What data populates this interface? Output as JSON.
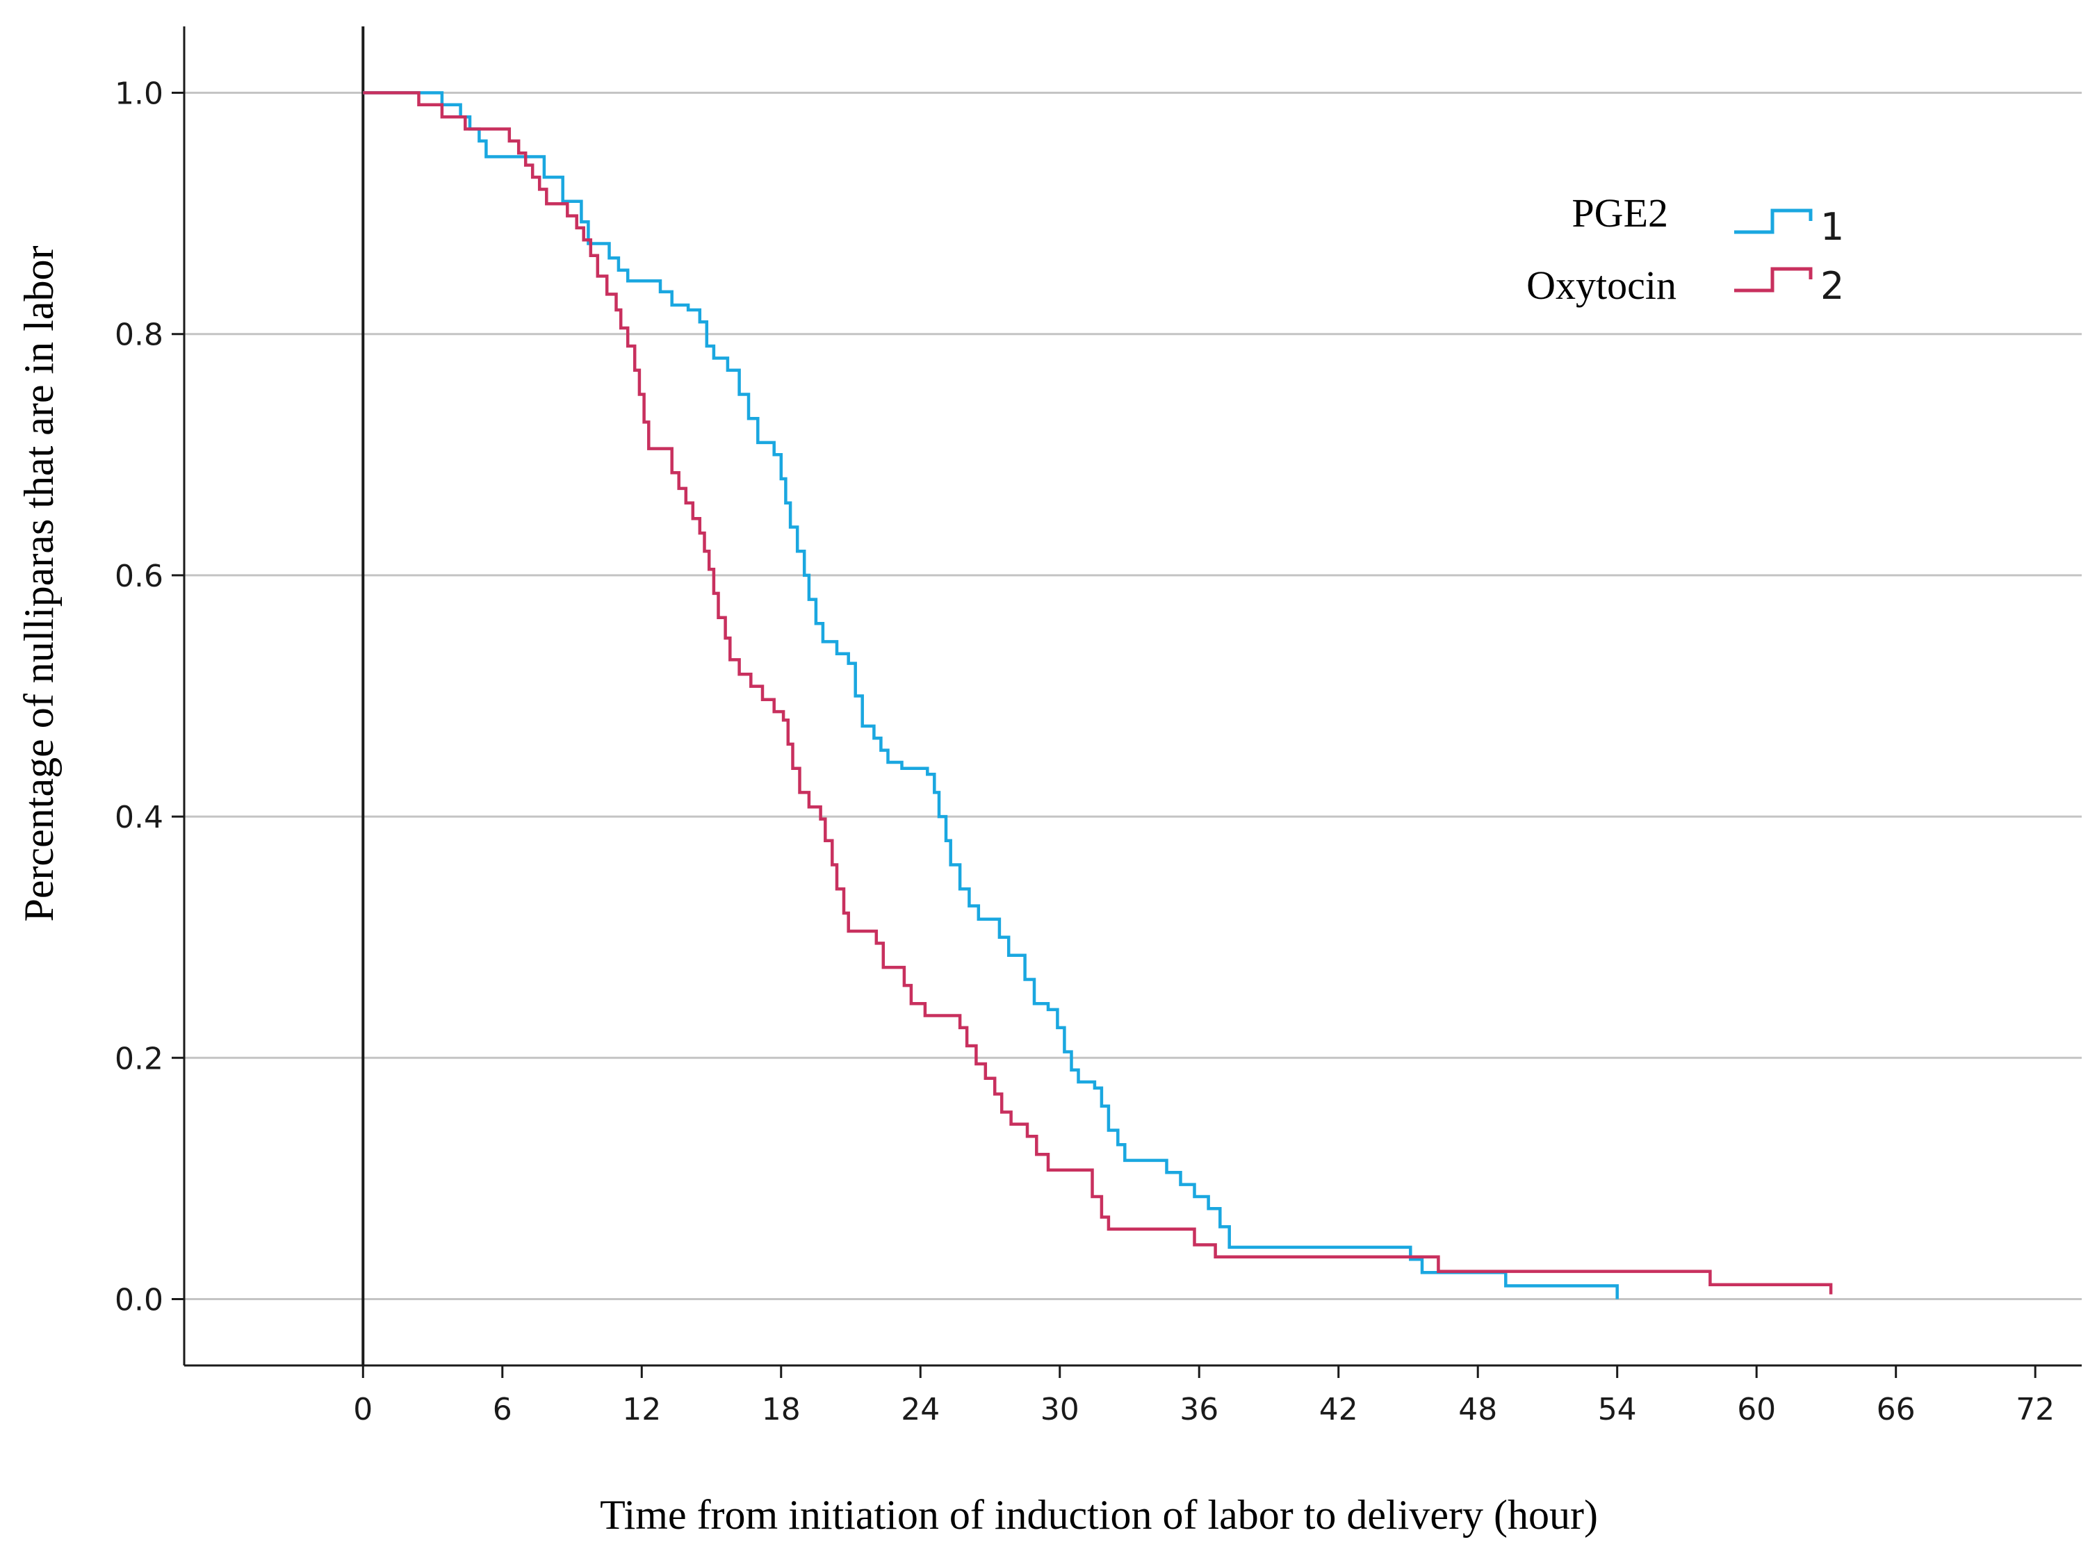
{
  "chart_data": {
    "type": "line",
    "step": true,
    "title": "",
    "xlabel": "Time from initiation of induction of labor to delivery (hour)",
    "ylabel": "Percentage of nulliparas that are in labor",
    "xlim": [
      -7.7,
      74
    ],
    "ylim": [
      -0.055,
      1.055
    ],
    "xticks": [
      0,
      6,
      12,
      18,
      24,
      30,
      36,
      42,
      48,
      54,
      60,
      66,
      72
    ],
    "xtick_labels": [
      "0",
      "6",
      "12",
      "18",
      "24",
      "30",
      "36",
      "42",
      "48",
      "54",
      "60",
      "66",
      "72"
    ],
    "yticks": [
      0.0,
      0.2,
      0.4,
      0.6,
      0.8,
      1.0
    ],
    "ytick_labels": [
      "0.0",
      "0.2",
      "0.4",
      "0.6",
      "0.8",
      "1.0"
    ],
    "grid": "horizontal",
    "reference_line_x": 0,
    "legend_position": "top-right",
    "colors": {
      "series1": "#1aa7e0",
      "series2": "#c8305e",
      "grid": "#c4c4c4",
      "axis": "#1a1a1a"
    },
    "series": [
      {
        "name": "PGE2",
        "code": "1",
        "color": "#1aa7e0",
        "points": [
          [
            0,
            1.0
          ],
          [
            2.3,
            1.0
          ],
          [
            3.4,
            0.99
          ],
          [
            4.2,
            0.98
          ],
          [
            4.6,
            0.97
          ],
          [
            5.0,
            0.96
          ],
          [
            5.3,
            0.947
          ],
          [
            6.6,
            0.947
          ],
          [
            7.8,
            0.93
          ],
          [
            8.6,
            0.91
          ],
          [
            9.4,
            0.893
          ],
          [
            9.7,
            0.875
          ],
          [
            10.6,
            0.863
          ],
          [
            11.0,
            0.853
          ],
          [
            11.4,
            0.844
          ],
          [
            12.8,
            0.835
          ],
          [
            13.3,
            0.824
          ],
          [
            14.0,
            0.82
          ],
          [
            14.5,
            0.81
          ],
          [
            14.8,
            0.79
          ],
          [
            15.1,
            0.78
          ],
          [
            15.7,
            0.77
          ],
          [
            16.2,
            0.75
          ],
          [
            16.6,
            0.73
          ],
          [
            17.0,
            0.71
          ],
          [
            17.7,
            0.7
          ],
          [
            18.0,
            0.68
          ],
          [
            18.2,
            0.66
          ],
          [
            18.4,
            0.64
          ],
          [
            18.7,
            0.62
          ],
          [
            19.0,
            0.6
          ],
          [
            19.2,
            0.58
          ],
          [
            19.5,
            0.56
          ],
          [
            19.8,
            0.545
          ],
          [
            20.4,
            0.535
          ],
          [
            20.9,
            0.527
          ],
          [
            21.2,
            0.5
          ],
          [
            21.5,
            0.475
          ],
          [
            22.0,
            0.465
          ],
          [
            22.3,
            0.455
          ],
          [
            22.6,
            0.445
          ],
          [
            23.2,
            0.44
          ],
          [
            24.3,
            0.435
          ],
          [
            24.6,
            0.42
          ],
          [
            24.8,
            0.4
          ],
          [
            25.1,
            0.38
          ],
          [
            25.3,
            0.36
          ],
          [
            25.7,
            0.34
          ],
          [
            26.1,
            0.326
          ],
          [
            26.5,
            0.315
          ],
          [
            27.4,
            0.3
          ],
          [
            27.8,
            0.285
          ],
          [
            28.5,
            0.265
          ],
          [
            28.9,
            0.245
          ],
          [
            29.5,
            0.24
          ],
          [
            29.9,
            0.225
          ],
          [
            30.2,
            0.205
          ],
          [
            30.5,
            0.19
          ],
          [
            30.8,
            0.18
          ],
          [
            31.5,
            0.175
          ],
          [
            31.8,
            0.16
          ],
          [
            32.1,
            0.14
          ],
          [
            32.5,
            0.128
          ],
          [
            32.8,
            0.115
          ],
          [
            34.0,
            0.115
          ],
          [
            34.6,
            0.105
          ],
          [
            35.2,
            0.095
          ],
          [
            35.8,
            0.085
          ],
          [
            36.4,
            0.075
          ],
          [
            36.9,
            0.06
          ],
          [
            37.3,
            0.043
          ],
          [
            44.8,
            0.043
          ],
          [
            45.1,
            0.033
          ],
          [
            45.6,
            0.022
          ],
          [
            48.9,
            0.022
          ],
          [
            49.2,
            0.011
          ],
          [
            54.0,
            0.011
          ],
          [
            54.0,
            0.0
          ]
        ]
      },
      {
        "name": "Oxytocin",
        "code": "2",
        "color": "#c8305e",
        "points": [
          [
            0,
            1.0
          ],
          [
            2.2,
            1.0
          ],
          [
            2.4,
            0.99
          ],
          [
            3.4,
            0.98
          ],
          [
            4.4,
            0.97
          ],
          [
            6.0,
            0.97
          ],
          [
            6.3,
            0.96
          ],
          [
            6.7,
            0.95
          ],
          [
            7.0,
            0.94
          ],
          [
            7.3,
            0.93
          ],
          [
            7.6,
            0.92
          ],
          [
            7.9,
            0.908
          ],
          [
            8.8,
            0.898
          ],
          [
            9.2,
            0.888
          ],
          [
            9.5,
            0.878
          ],
          [
            9.8,
            0.865
          ],
          [
            10.1,
            0.848
          ],
          [
            10.5,
            0.833
          ],
          [
            10.9,
            0.82
          ],
          [
            11.1,
            0.805
          ],
          [
            11.4,
            0.79
          ],
          [
            11.7,
            0.77
          ],
          [
            11.9,
            0.75
          ],
          [
            12.1,
            0.727
          ],
          [
            12.3,
            0.705
          ],
          [
            13.1,
            0.705
          ],
          [
            13.3,
            0.685
          ],
          [
            13.6,
            0.672
          ],
          [
            13.9,
            0.66
          ],
          [
            14.2,
            0.647
          ],
          [
            14.5,
            0.635
          ],
          [
            14.7,
            0.62
          ],
          [
            14.9,
            0.605
          ],
          [
            15.1,
            0.585
          ],
          [
            15.3,
            0.565
          ],
          [
            15.6,
            0.548
          ],
          [
            15.8,
            0.53
          ],
          [
            16.2,
            0.518
          ],
          [
            16.7,
            0.508
          ],
          [
            17.2,
            0.497
          ],
          [
            17.7,
            0.487
          ],
          [
            18.1,
            0.48
          ],
          [
            18.3,
            0.46
          ],
          [
            18.5,
            0.44
          ],
          [
            18.8,
            0.42
          ],
          [
            19.2,
            0.408
          ],
          [
            19.7,
            0.398
          ],
          [
            19.9,
            0.38
          ],
          [
            20.2,
            0.36
          ],
          [
            20.4,
            0.34
          ],
          [
            20.7,
            0.32
          ],
          [
            20.9,
            0.305
          ],
          [
            22.1,
            0.295
          ],
          [
            22.4,
            0.275
          ],
          [
            23.3,
            0.26
          ],
          [
            23.6,
            0.245
          ],
          [
            24.2,
            0.235
          ],
          [
            25.7,
            0.225
          ],
          [
            26.0,
            0.21
          ],
          [
            26.4,
            0.195
          ],
          [
            26.8,
            0.183
          ],
          [
            27.2,
            0.17
          ],
          [
            27.5,
            0.155
          ],
          [
            27.9,
            0.145
          ],
          [
            28.6,
            0.135
          ],
          [
            29.0,
            0.12
          ],
          [
            29.5,
            0.107
          ],
          [
            31.1,
            0.107
          ],
          [
            31.4,
            0.085
          ],
          [
            31.8,
            0.068
          ],
          [
            32.1,
            0.058
          ],
          [
            35.2,
            0.058
          ],
          [
            35.8,
            0.045
          ],
          [
            36.7,
            0.035
          ],
          [
            46.0,
            0.035
          ],
          [
            46.3,
            0.023
          ],
          [
            57.5,
            0.023
          ],
          [
            58.0,
            0.012
          ],
          [
            63.2,
            0.012
          ],
          [
            63.2,
            0.004
          ]
        ]
      }
    ]
  }
}
